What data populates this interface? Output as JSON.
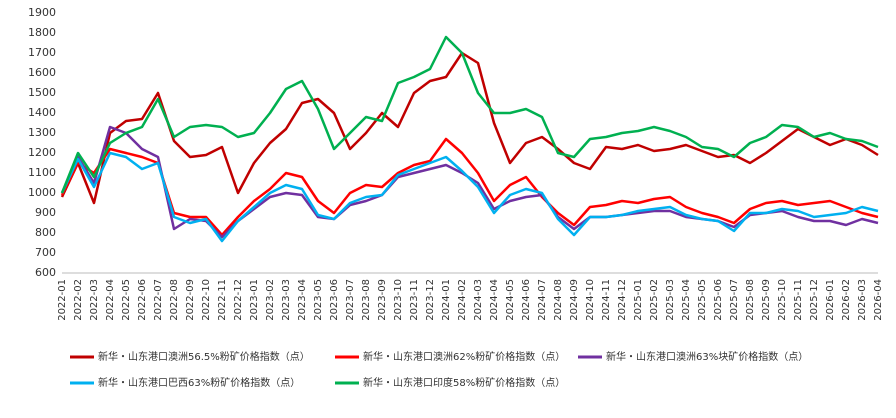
{
  "chart_data": {
    "type": "line",
    "categories": [
      "2022-01",
      "2022-02",
      "2022-03",
      "2022-04",
      "2022-05",
      "2022-06",
      "2022-07",
      "2022-08",
      "2022-09",
      "2022-10",
      "2022-11",
      "2022-12",
      "2023-01",
      "2023-02",
      "2023-03",
      "2023-04",
      "2023-05",
      "2023-06",
      "2023-07",
      "2023-08",
      "2023-09",
      "2023-10",
      "2023-11",
      "2023-12",
      "2024-01",
      "2024-02",
      "2024-03",
      "2024-04",
      "2024-05",
      "2024-06",
      "2024-07",
      "2024-08",
      "2024-09",
      "2024-10",
      "2024-11",
      "2024-12",
      "2025-01",
      "2025-02",
      "2025-03",
      "2025-04",
      "2025-05",
      "2025-06",
      "2025-07",
      "2025-08",
      "2025-09",
      "2025-10",
      "2025-11",
      "2025-12",
      "2026-01",
      "2026-02",
      "2026-03",
      "2026-04"
    ],
    "series": [
      {
        "name": "新华・山东港口澳洲56.5%粉矿价格指数（点）",
        "color": "#c00000",
        "values": [
          980,
          1150,
          950,
          1300,
          1360,
          1370,
          1500,
          1260,
          1180,
          1190,
          1230,
          1000,
          1150,
          1250,
          1320,
          1450,
          1470,
          1400,
          1220,
          1300,
          1400,
          1330,
          1500,
          1560,
          1580,
          1700,
          1650,
          1350,
          1150,
          1250,
          1280,
          1220,
          1150,
          1120,
          1230,
          1220,
          1240,
          1210,
          1220,
          1240,
          1210,
          1180,
          1190,
          1150,
          1200,
          1260,
          1320,
          1280,
          1240,
          1270,
          1240,
          1190
        ]
      },
      {
        "name": "新华・山东港口澳洲62%粉矿价格指数（点）",
        "color": "#ff0000",
        "values": [
          990,
          1150,
          1100,
          1220,
          1200,
          1180,
          1150,
          900,
          880,
          880,
          790,
          880,
          960,
          1020,
          1100,
          1080,
          960,
          900,
          1000,
          1040,
          1030,
          1100,
          1140,
          1160,
          1270,
          1200,
          1100,
          960,
          1040,
          1080,
          980,
          900,
          840,
          930,
          940,
          960,
          950,
          970,
          980,
          930,
          900,
          880,
          850,
          920,
          950,
          960,
          940,
          950,
          960,
          930,
          900,
          880
        ]
      },
      {
        "name": "新华・山东港口澳洲63%块矿价格指数（点）",
        "color": "#7030a0",
        "values": [
          1000,
          1180,
          1050,
          1330,
          1300,
          1220,
          1180,
          820,
          870,
          860,
          780,
          860,
          920,
          980,
          1000,
          990,
          880,
          870,
          940,
          960,
          990,
          1080,
          1100,
          1120,
          1140,
          1100,
          1050,
          920,
          960,
          980,
          990,
          880,
          820,
          880,
          880,
          890,
          900,
          910,
          910,
          880,
          870,
          860,
          830,
          890,
          900,
          910,
          880,
          860,
          860,
          840,
          870,
          850
        ]
      },
      {
        "name": "新华・山东港口巴西63%粉矿价格指数（点）",
        "color": "#00b0f0",
        "values": [
          1000,
          1170,
          1030,
          1200,
          1180,
          1120,
          1150,
          880,
          850,
          870,
          760,
          860,
          930,
          1000,
          1040,
          1020,
          890,
          870,
          950,
          980,
          990,
          1090,
          1120,
          1150,
          1180,
          1110,
          1030,
          900,
          990,
          1020,
          1000,
          870,
          790,
          880,
          880,
          890,
          910,
          920,
          930,
          890,
          870,
          860,
          810,
          900,
          900,
          920,
          910,
          880,
          890,
          900,
          930,
          910
        ]
      },
      {
        "name": "新华・山东港口印度58%粉矿价格指数（点）",
        "color": "#00b050",
        "values": [
          1000,
          1200,
          1080,
          1250,
          1300,
          1330,
          1470,
          1280,
          1330,
          1340,
          1330,
          1280,
          1300,
          1400,
          1520,
          1560,
          1420,
          1220,
          1300,
          1380,
          1360,
          1550,
          1580,
          1620,
          1780,
          1700,
          1500,
          1400,
          1400,
          1420,
          1380,
          1200,
          1180,
          1270,
          1280,
          1300,
          1310,
          1330,
          1310,
          1280,
          1230,
          1220,
          1180,
          1250,
          1280,
          1340,
          1330,
          1280,
          1300,
          1270,
          1260,
          1230
        ]
      }
    ],
    "ylim": [
      600,
      1900
    ],
    "yticks": [
      600,
      700,
      800,
      900,
      1000,
      1100,
      1200,
      1300,
      1400,
      1500,
      1600,
      1700,
      1800,
      1900
    ],
    "grid": false
  }
}
